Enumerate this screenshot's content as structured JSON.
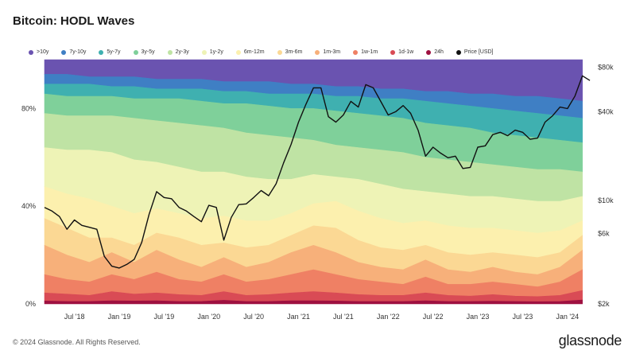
{
  "header": {
    "title": "Bitcoin: HODL Waves"
  },
  "footer": {
    "copyright": "© 2024 Glassnode. All Rights Reserved.",
    "brand": "glassnode"
  },
  "chart_data": {
    "type": "area",
    "title": "Bitcoin: HODL Waves",
    "stacked": true,
    "x": [
      "2018-03",
      "2018-06",
      "2018-09",
      "2018-12",
      "2019-03",
      "2019-06",
      "2019-09",
      "2019-12",
      "2020-03",
      "2020-06",
      "2020-09",
      "2020-12",
      "2021-03",
      "2021-06",
      "2021-09",
      "2021-12",
      "2022-03",
      "2022-06",
      "2022-09",
      "2022-12",
      "2023-03",
      "2023-06",
      "2023-09",
      "2023-12",
      "2024-03"
    ],
    "xtick_labels": [
      "Jul '18",
      "Jan '19",
      "Jul '19",
      "Jan '20",
      "Jul '20",
      "Jan '21",
      "Jul '21",
      "Jan '22",
      "Jul '22",
      "Jan '23",
      "Jul '23",
      "Jan '24"
    ],
    "yleft": {
      "ylim": [
        0,
        100
      ],
      "tick_labels": [
        "0%",
        "40%",
        "80%"
      ],
      "tick_values": [
        0,
        40,
        80
      ]
    },
    "yright": {
      "scale": "log",
      "ylim": [
        2000,
        90000
      ],
      "tick_labels": [
        "$2k",
        "$6k",
        "$10k",
        "$40k",
        "$80k"
      ],
      "tick_values": [
        2000,
        6000,
        10000,
        40000,
        80000
      ]
    },
    "legend": [
      "> 10y",
      "7y-10y",
      "5y-7y",
      "3y-5y",
      "2y-3y",
      "1y-2y",
      "6m-12m",
      "3m-6m",
      "1m-3m",
      "1w-1m",
      "1d-1w",
      "24h",
      "Price [USD]"
    ],
    "legend_labels": [
      ">10y",
      "7y-10y",
      "5y-7y",
      "3y-5y",
      "2y-3y",
      "1y-2y",
      "6m-12m",
      "3m-6m",
      "1m-3m",
      "1w-1m",
      "1d-1w",
      "24h",
      "Price [USD]"
    ],
    "colors": [
      "#6a53b0",
      "#3f7fc4",
      "#3fb0b0",
      "#7fd09a",
      "#bfe3a4",
      "#eef3b6",
      "#fcf0ae",
      "#fbd894",
      "#f7b07a",
      "#ef8064",
      "#d94b55",
      "#9e1040",
      "#111111"
    ],
    "boundaries": {
      "24h": [
        1.2,
        1.0,
        1.0,
        1.3,
        1.2,
        1.3,
        1.0,
        1.0,
        1.5,
        1.0,
        1.0,
        1.3,
        1.3,
        1.2,
        1.0,
        1.0,
        1.0,
        1.3,
        1.0,
        1.0,
        1.1,
        1.0,
        0.9,
        1.0,
        1.6
      ],
      "1d-1w": [
        4.5,
        4.0,
        3.5,
        5.0,
        4.0,
        4.5,
        3.8,
        3.5,
        5.0,
        3.5,
        3.8,
        4.5,
        5.0,
        4.5,
        3.8,
        3.5,
        3.5,
        4.5,
        3.5,
        3.2,
        3.8,
        3.2,
        3.0,
        3.5,
        5.5
      ],
      "1w-1m": [
        12,
        10,
        9,
        12,
        10,
        13,
        10,
        9,
        12,
        9,
        10,
        12,
        14,
        12,
        10,
        9,
        8,
        11,
        8,
        8,
        9,
        8,
        7,
        9,
        14
      ],
      "1m-3m": [
        24,
        20,
        17,
        21,
        17,
        22,
        18,
        15,
        19,
        15,
        17,
        21,
        24,
        21,
        17,
        15,
        14,
        18,
        14,
        13,
        15,
        13,
        12,
        15,
        22
      ],
      "3m-6m": [
        35,
        31,
        27,
        27,
        24,
        29,
        27,
        24,
        25,
        23,
        24,
        28,
        32,
        31,
        26,
        23,
        22,
        24,
        21,
        20,
        21,
        20,
        19,
        21,
        28
      ],
      "6m-12m": [
        48,
        45,
        43,
        40,
        37,
        39,
        37,
        35,
        36,
        34,
        34,
        37,
        41,
        42,
        38,
        35,
        33,
        34,
        32,
        31,
        31,
        30,
        29,
        30,
        34
      ],
      "1y-2y": [
        64,
        63,
        63,
        62,
        59,
        58,
        56,
        54,
        54,
        52,
        51,
        51,
        53,
        52,
        51,
        49,
        47,
        46,
        45,
        44,
        44,
        43,
        42,
        42,
        44
      ],
      "2y-3y": [
        78,
        77,
        77,
        77,
        76,
        75,
        74,
        73,
        72,
        70,
        69,
        68,
        67,
        65,
        64,
        63,
        62,
        60,
        59,
        58,
        57,
        56,
        55,
        55,
        54
      ],
      "3y-5y": [
        86,
        85,
        85,
        85,
        84,
        84,
        84,
        83,
        82,
        82,
        81,
        80,
        80,
        79,
        78,
        77,
        76,
        74,
        73,
        72,
        70,
        69,
        68,
        67,
        66
      ],
      "5y-7y": [
        90,
        90,
        90,
        89,
        89,
        88,
        88,
        88,
        87,
        87,
        86,
        86,
        86,
        85,
        85,
        84,
        84,
        83,
        82,
        81,
        80,
        79,
        78,
        77,
        76
      ],
      "7y-10y": [
        94,
        94,
        93,
        93,
        93,
        92,
        92,
        92,
        91,
        91,
        91,
        90,
        90,
        89,
        89,
        88,
        88,
        87,
        87,
        86,
        86,
        85,
        85,
        84,
        83
      ]
    },
    "price": {
      "dates": [
        "2018-03",
        "2018-04",
        "2018-05",
        "2018-06",
        "2018-07",
        "2018-08",
        "2018-09",
        "2018-10",
        "2018-11",
        "2018-12",
        "2019-01",
        "2019-02",
        "2019-03",
        "2019-04",
        "2019-05",
        "2019-06",
        "2019-07",
        "2019-08",
        "2019-09",
        "2019-10",
        "2019-11",
        "2019-12",
        "2020-01",
        "2020-02",
        "2020-03",
        "2020-04",
        "2020-05",
        "2020-06",
        "2020-07",
        "2020-08",
        "2020-09",
        "2020-10",
        "2020-11",
        "2020-12",
        "2021-01",
        "2021-02",
        "2021-03",
        "2021-04",
        "2021-05",
        "2021-06",
        "2021-07",
        "2021-08",
        "2021-09",
        "2021-10",
        "2021-11",
        "2021-12",
        "2022-01",
        "2022-02",
        "2022-03",
        "2022-04",
        "2022-05",
        "2022-06",
        "2022-07",
        "2022-08",
        "2022-09",
        "2022-10",
        "2022-11",
        "2022-12",
        "2023-01",
        "2023-02",
        "2023-03",
        "2023-04",
        "2023-05",
        "2023-06",
        "2023-07",
        "2023-08",
        "2023-09",
        "2023-10",
        "2023-11",
        "2023-12",
        "2024-01",
        "2024-02",
        "2024-03",
        "2024-04"
      ],
      "values": [
        9000,
        8500,
        7800,
        6400,
        7400,
        6800,
        6600,
        6400,
        4200,
        3600,
        3500,
        3700,
        4000,
        5200,
        8100,
        11500,
        10500,
        10300,
        9000,
        8500,
        7800,
        7200,
        9300,
        9000,
        5400,
        7700,
        9400,
        9500,
        10500,
        11700,
        10800,
        13000,
        18000,
        24000,
        34000,
        45000,
        58000,
        58000,
        37000,
        34000,
        38000,
        47000,
        43000,
        61000,
        58000,
        47000,
        38000,
        40000,
        44000,
        39000,
        30000,
        20000,
        23000,
        21000,
        19500,
        20000,
        16500,
        16800,
        23000,
        23500,
        28000,
        29000,
        27500,
        30000,
        29000,
        26000,
        26500,
        34000,
        37500,
        43000,
        42000,
        51000,
        70000,
        65000
      ]
    }
  }
}
